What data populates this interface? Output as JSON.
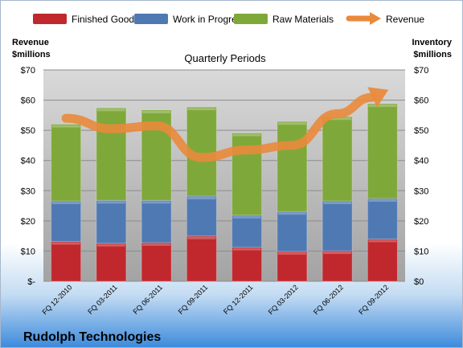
{
  "chart_data": {
    "type": "bar",
    "stacked": true,
    "title": "Quarterly Periods",
    "company": "Rudolph Technologies",
    "categories": [
      "FQ 12-2010",
      "FQ 03-2011",
      "FQ 06-2011",
      "FQ 09-2011",
      "FQ 12-2011",
      "FQ 03-2012",
      "FQ 06-2012",
      "FQ 09-2012"
    ],
    "series": [
      {
        "name": "Finished Goods",
        "type": "bar",
        "color": "#c0282d",
        "values": [
          13.2,
          12.6,
          12.8,
          15.0,
          11.3,
          9.9,
          10.1,
          14.0
        ]
      },
      {
        "name": "Work in Progress",
        "type": "bar",
        "color": "#4f79b3",
        "values": [
          13.4,
          14.2,
          14.0,
          13.2,
          10.6,
          13.2,
          16.5,
          13.4
        ]
      },
      {
        "name": "Raw Materials",
        "type": "bar",
        "color": "#7fa83a",
        "values": [
          25.4,
          30.6,
          29.9,
          29.5,
          27.2,
          29.8,
          27.9,
          31.4
        ]
      },
      {
        "name": "Revenue",
        "type": "line",
        "color": "#ea8a3c",
        "values": [
          54,
          50.5,
          51.5,
          41.0,
          43.5,
          45.0,
          55.5,
          62.5
        ]
      }
    ],
    "left_axis": {
      "label_line1": "Revenue",
      "label_line2": "$millions",
      "ylim": [
        0,
        70
      ],
      "ticks": [
        "$-",
        "$10",
        "$20",
        "$30",
        "$40",
        "$50",
        "$60",
        "$70"
      ]
    },
    "right_axis": {
      "label_line1": "Inventory",
      "label_line2": "$millions",
      "ylim": [
        0,
        70
      ],
      "ticks": [
        "$0",
        "$10",
        "$20",
        "$30",
        "$40",
        "$50",
        "$60",
        "$70"
      ]
    },
    "grid": true,
    "legend_position": "top"
  }
}
